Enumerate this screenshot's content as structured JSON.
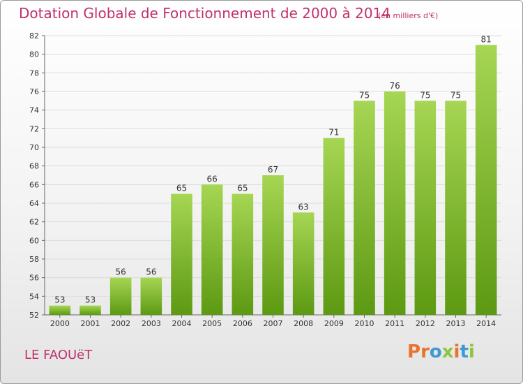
{
  "header": {
    "title": "Dotation Globale de Fonctionnement de 2000 à 2014",
    "unit_note": "(en milliers d'€)"
  },
  "footer": {
    "commune": "LE FAOUëT",
    "logo_text": "Proxiti"
  },
  "colors": {
    "title": "#c0306a",
    "bar_top": "#a6d653",
    "bar_bottom": "#5d9912",
    "grid": "#dcdcdc",
    "axis_text": "#333333",
    "logo_letters": [
      "#e8732a",
      "#e8732a",
      "#3d9ad1",
      "#8cc63f",
      "#e8732a",
      "#3d9ad1",
      "#8cc63f"
    ]
  },
  "chart_data": {
    "type": "bar",
    "title": "Dotation Globale de Fonctionnement de 2000 à 2014",
    "subtitle": "(en milliers d'€)",
    "categories": [
      "2000",
      "2001",
      "2002",
      "2003",
      "2004",
      "2005",
      "2006",
      "2007",
      "2008",
      "2009",
      "2010",
      "2011",
      "2012",
      "2013",
      "2014"
    ],
    "values": [
      53,
      53,
      56,
      56,
      65,
      66,
      65,
      67,
      63,
      71,
      75,
      76,
      75,
      75,
      81
    ],
    "ylim": [
      52,
      82
    ],
    "yticks": [
      52,
      54,
      56,
      58,
      60,
      62,
      64,
      66,
      68,
      70,
      72,
      74,
      76,
      78,
      80,
      82
    ],
    "grid": true,
    "data_labels": true,
    "xlabel": "",
    "ylabel": ""
  }
}
